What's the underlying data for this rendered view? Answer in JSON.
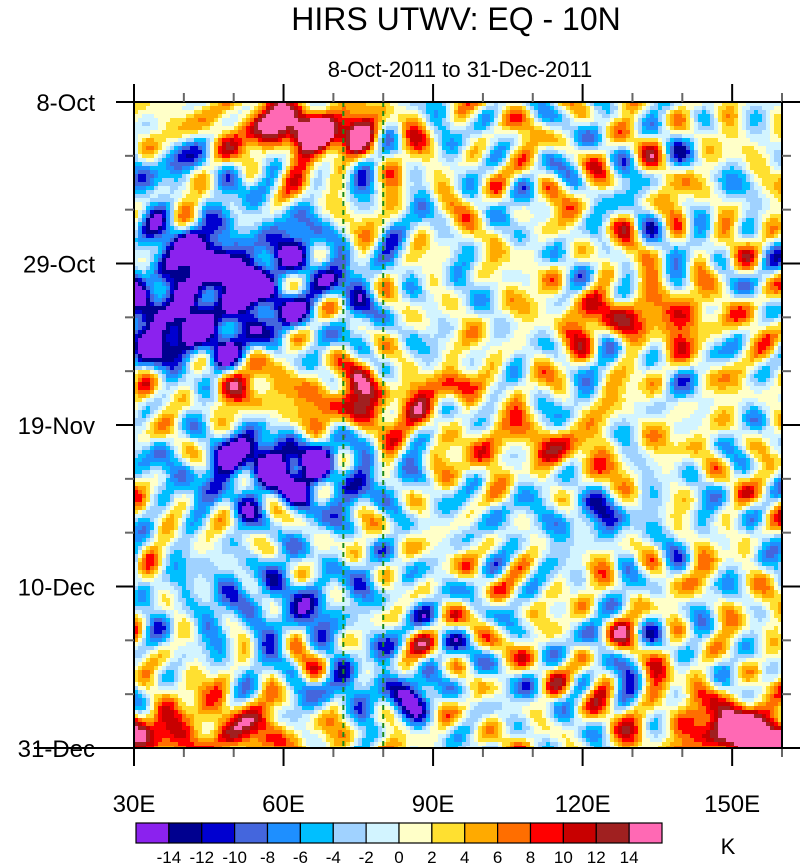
{
  "chart_data": {
    "type": "heatmap",
    "title": "HIRS UTWV: EQ - 10N",
    "subtitle": "8-Oct-2011 to 31-Dec-2011",
    "xlabel": "",
    "ylabel": "",
    "x_axis": {
      "range_deg_east": [
        30,
        160
      ],
      "tick_values": [
        30,
        60,
        90,
        120,
        150
      ],
      "tick_labels": [
        "30E",
        "60E",
        "90E",
        "120E",
        "150E"
      ],
      "minor_tick_step_deg": 10
    },
    "y_axis": {
      "range_days_from_start": [
        0,
        84
      ],
      "inverted": true,
      "tick_values": [
        0,
        21,
        42,
        63,
        84
      ],
      "tick_labels": [
        "8-Oct",
        "29-Oct",
        "19-Nov",
        "10-Dec",
        "31-Dec"
      ],
      "minor_tick_step_days": 7
    },
    "reference_lines_deg_east": [
      72,
      80
    ],
    "reference_line_color": "#1a8a1a",
    "colorbar": {
      "levels": [
        -14,
        -12,
        -10,
        -8,
        -6,
        -4,
        -2,
        0,
        2,
        4,
        6,
        8,
        10,
        12,
        14
      ],
      "level_labels": [
        "-14",
        "-12",
        "-10",
        "-8",
        "-6",
        "-4",
        "-2",
        "0",
        "2",
        "4",
        "6",
        "8",
        "10",
        "12",
        "14"
      ],
      "colors": [
        "#8b22ee",
        "#00008f",
        "#0000d0",
        "#4466dd",
        "#1e8fff",
        "#00bfff",
        "#a0d2ff",
        "#d2f4ff",
        "#ffffc8",
        "#ffe030",
        "#ffaa00",
        "#ff6e00",
        "#ff0000",
        "#c80000",
        "#a02020",
        "#ff69b4"
      ],
      "units": "K",
      "placement": "bottom"
    },
    "features": [
      {
        "kind": "max",
        "lon": 68,
        "day": 4,
        "value": 16,
        "width_deg": 10,
        "height_days": 2.5
      },
      {
        "kind": "max",
        "lon": 58,
        "day": 3,
        "value": 8,
        "width_deg": 16,
        "height_days": 4
      },
      {
        "kind": "min",
        "lon": 45,
        "day": 20,
        "value": -10,
        "width_deg": 20,
        "height_days": 5
      },
      {
        "kind": "min",
        "lon": 42,
        "day": 28,
        "value": -9,
        "width_deg": 18,
        "height_days": 5
      },
      {
        "kind": "min",
        "lon": 55,
        "day": 24,
        "value": -7,
        "width_deg": 25,
        "height_days": 7
      },
      {
        "kind": "min",
        "lon": 38,
        "day": 8,
        "value": -6,
        "width_deg": 12,
        "height_days": 3
      },
      {
        "kind": "min",
        "lon": 38,
        "day": 32,
        "value": -9,
        "width_deg": 12,
        "height_days": 3
      },
      {
        "kind": "max",
        "lon": 77,
        "day": 40,
        "value": 11,
        "width_deg": 8,
        "height_days": 3
      },
      {
        "kind": "max",
        "lon": 60,
        "day": 37,
        "value": 6,
        "width_deg": 18,
        "height_days": 4
      },
      {
        "kind": "min",
        "lon": 62,
        "day": 49,
        "value": -11,
        "width_deg": 18,
        "height_days": 5
      },
      {
        "kind": "min",
        "lon": 55,
        "day": 46,
        "value": -9,
        "width_deg": 14,
        "height_days": 3
      },
      {
        "kind": "max",
        "lon": 132,
        "day": 28,
        "value": 9,
        "width_deg": 18,
        "height_days": 3
      },
      {
        "kind": "max",
        "lon": 110,
        "day": 45,
        "value": 6,
        "width_deg": 20,
        "height_days": 3
      },
      {
        "kind": "max",
        "lon": 93,
        "day": 37,
        "value": 8,
        "width_deg": 8,
        "height_days": 2
      },
      {
        "kind": "min",
        "lon": 80,
        "day": 77,
        "value": -10,
        "width_deg": 14,
        "height_days": 3
      },
      {
        "kind": "min",
        "lon": 60,
        "day": 65,
        "value": -7,
        "width_deg": 22,
        "height_days": 6
      },
      {
        "kind": "max",
        "lon": 42,
        "day": 82,
        "value": 10,
        "width_deg": 22,
        "height_days": 4
      },
      {
        "kind": "max",
        "lon": 158,
        "day": 83,
        "value": 15,
        "width_deg": 10,
        "height_days": 3
      },
      {
        "kind": "max",
        "lon": 150,
        "day": 81,
        "value": 10,
        "width_deg": 16,
        "height_days": 4
      },
      {
        "kind": "min",
        "lon": 120,
        "day": 54,
        "value": -6,
        "width_deg": 18,
        "height_days": 3
      }
    ]
  }
}
